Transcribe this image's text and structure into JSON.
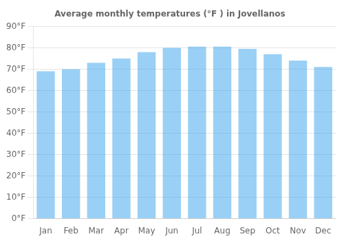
{
  "chart_data": {
    "type": "bar",
    "title": "Average monthly temperatures (°F ) in Jovellanos",
    "categories": [
      "Jan",
      "Feb",
      "Mar",
      "Apr",
      "May",
      "Jun",
      "Jul",
      "Aug",
      "Sep",
      "Oct",
      "Nov",
      "Dec"
    ],
    "values": [
      69,
      70,
      73,
      75,
      78,
      80,
      80.5,
      80.5,
      79.5,
      77,
      74,
      71
    ],
    "ylim": [
      0,
      90
    ],
    "yticks": [
      {
        "value": 0,
        "label": "0°F"
      },
      {
        "value": 10,
        "label": "10°F"
      },
      {
        "value": 20,
        "label": "20°F"
      },
      {
        "value": 30,
        "label": "30°F"
      },
      {
        "value": 40,
        "label": "40°F"
      },
      {
        "value": 50,
        "label": "50°F"
      },
      {
        "value": 60,
        "label": "60°F"
      },
      {
        "value": 70,
        "label": "70°F"
      },
      {
        "value": 80,
        "label": "80°F"
      },
      {
        "value": 90,
        "label": "90°F"
      }
    ],
    "grid": true
  }
}
